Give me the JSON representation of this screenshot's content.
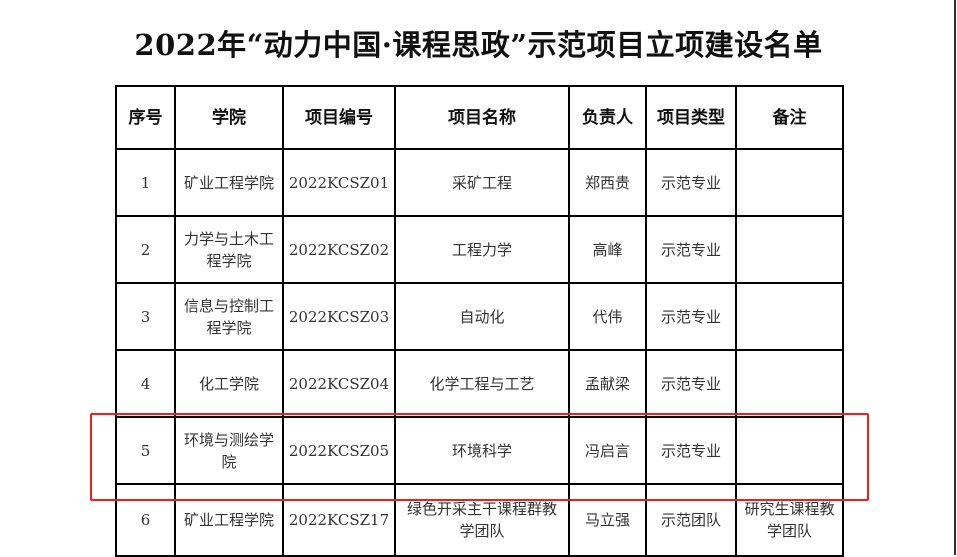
{
  "title": "2022年“动力中国·课程思政”示范项目立项建设名单",
  "highlight_color": "#f01e1e",
  "table": {
    "headers": [
      "序号",
      "学院",
      "项目编号",
      "项目名称",
      "负责人",
      "项目类型",
      "备注"
    ],
    "rows": [
      [
        "1",
        "矿业工程学院",
        "2022KCSZ01",
        "采矿工程",
        "郑西贵",
        "示范专业",
        ""
      ],
      [
        "2",
        "力学与土木工程学院",
        "2022KCSZ02",
        "工程力学",
        "高峰",
        "示范专业",
        ""
      ],
      [
        "3",
        "信息与控制工程学院",
        "2022KCSZ03",
        "自动化",
        "代伟",
        "示范专业",
        ""
      ],
      [
        "4",
        "化工学院",
        "2022KCSZ04",
        "化学工程与工艺",
        "孟献梁",
        "示范专业",
        ""
      ],
      [
        "5",
        "环境与测绘学院",
        "2022KCSZ05",
        "环境科学",
        "冯启言",
        "示范专业",
        ""
      ],
      [
        "6",
        "矿业工程学院",
        "2022KCSZ17",
        "绿色开采主干课程群教学团队",
        "马立强",
        "示范团队",
        "研究生课程教学团队"
      ]
    ]
  }
}
